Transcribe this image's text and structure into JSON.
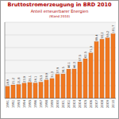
{
  "chart_data": {
    "type": "bar",
    "title": "Bruttostromerzeugung in BRD 2010",
    "subtitle": "Anteil erneuerbarer Energien",
    "annotation": "(Stand 2010)",
    "categories": [
      "1991",
      "1992",
      "1993",
      "1994",
      "1995",
      "1996",
      "1997",
      "1998",
      "1999",
      "2000",
      "2001",
      "2002",
      "2003",
      "2004",
      "2005",
      "2006",
      "2007",
      "2008",
      "2009",
      "2010"
    ],
    "values": [
      18.9,
      21.2,
      21.8,
      23.9,
      25.1,
      24.1,
      25.5,
      28.9,
      31.3,
      37.9,
      38.5,
      46.1,
      46.3,
      57.5,
      62.5,
      71.5,
      89.4,
      93.2,
      95.2,
      101.7
    ],
    "value_labels": [
      "18,9",
      "21,2",
      "21,8",
      "23,9",
      "25,1",
      "24,1",
      "25,5",
      "28,9",
      "31,3",
      "37,9",
      "38,5",
      "46,1",
      "46,3",
      "57,5",
      "62,5",
      "71,5",
      "89,4",
      "93,2",
      "95,2",
      "101,7"
    ],
    "color": "#f07820",
    "ylim": [
      0,
      120
    ],
    "yticks": [
      0,
      20,
      40,
      60,
      80,
      100,
      120
    ],
    "grid": true,
    "data_labels": true,
    "tick_labels": "x"
  }
}
